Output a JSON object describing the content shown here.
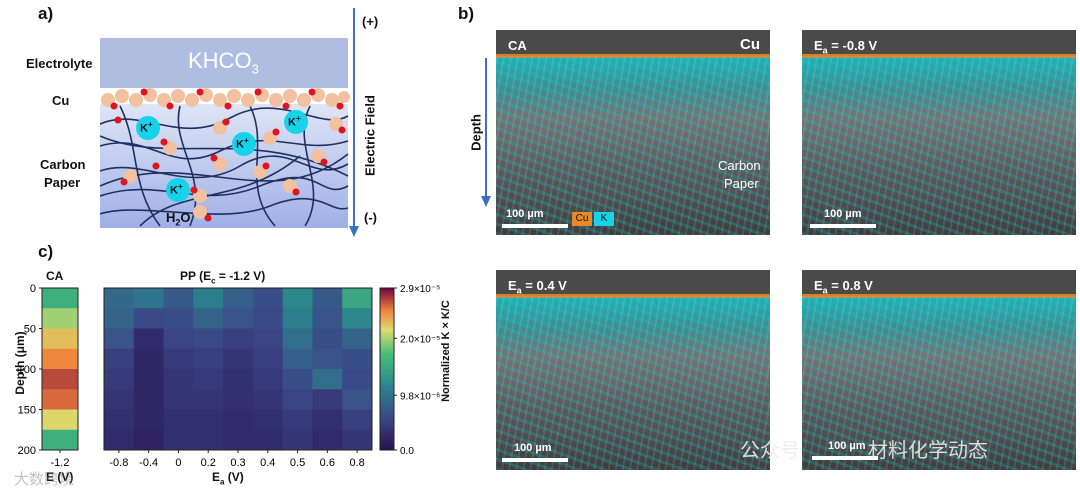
{
  "panel_a": {
    "label": "a)",
    "electrolyte_label": "Electrolyte",
    "cu_label": "Cu",
    "carbon_label_1": "Carbon",
    "carbon_label_2": "Paper",
    "khco3": "KHCO",
    "khco3_sub": "3",
    "kplus": "K",
    "kplus_sup": "+",
    "h2o_h": "H",
    "h2o_sub": "2",
    "h2o_o": "O",
    "plus": "(+)",
    "minus": "(-)",
    "field_label": "Electric Field"
  },
  "panel_b": {
    "label": "b)",
    "depth_label": "Depth",
    "images": [
      {
        "title": "CA",
        "extra": "Cu",
        "scale": "100 µm",
        "note1": "Carbon",
        "note2": "Paper",
        "legend_cu": "Cu",
        "legend_k": "K"
      },
      {
        "title_pre": "E",
        "title_sub": "a",
        "title_post": " = -0.8 V",
        "scale": "100 µm"
      },
      {
        "title_pre": "E",
        "title_sub": "a",
        "title_post": " = 0.4 V",
        "scale": "100 µm"
      },
      {
        "title_pre": "E",
        "title_sub": "a",
        "title_post": " = 0.8 V",
        "scale": "100 µm"
      }
    ]
  },
  "panel_c": {
    "label": "c)",
    "ca_title": "CA",
    "pp_title_pre": "PP (E",
    "pp_title_sub": "c",
    "pp_title_post": " = -1.2 V)",
    "ylabel": "Depth (μm)",
    "xlabel_left": "E (V)",
    "xlabel_pre": "E",
    "xlabel_sub": "a",
    "xlabel_post": " (V)",
    "colorbar_label": "Normalized K × K/C",
    "colorbar_ticks": [
      "2.9×10⁻⁵",
      "2.0×10⁻⁵",
      "9.8×10⁻⁶",
      "0.0"
    ]
  },
  "chart_data": {
    "type": "heatmap",
    "title": "PP (Ec = -1.2 V)",
    "xlabel": "Ea (V)",
    "ylabel": "Depth (μm)",
    "ylim": [
      0,
      200
    ],
    "yticks": [
      "0",
      "50",
      "100",
      "150",
      "200"
    ],
    "ca_x": [
      "-1.2"
    ],
    "categories": [
      "-0.8",
      "-0.4",
      "0",
      "0.2",
      "0.3",
      "0.4",
      "0.5",
      "0.6",
      "0.8"
    ],
    "colorbar_range": [
      0.0,
      2.9e-05
    ],
    "depth_bins": [
      0,
      25,
      50,
      75,
      100,
      125,
      150,
      175
    ],
    "ca_values": [
      1.6e-05,
      2e-05,
      2.3e-05,
      2.5e-05,
      2.7e-05,
      2.6e-05,
      2.2e-05,
      1.6e-05
    ],
    "values": [
      [
        9e-06,
        8.5e-06,
        7e-06,
        5e-06,
        4.5e-06,
        4e-06,
        3.5e-06,
        3e-06
      ],
      [
        1e-05,
        6e-06,
        3e-06,
        2.5e-06,
        2.5e-06,
        2.5e-06,
        2.5e-06,
        2e-06
      ],
      [
        7.5e-06,
        6.5e-06,
        5.5e-06,
        4.5e-06,
        4e-06,
        4e-06,
        3.5e-06,
        3.5e-06
      ],
      [
        1.1e-05,
        8.5e-06,
        6e-06,
        5e-06,
        4.5e-06,
        4e-06,
        3.5e-06,
        3.5e-06
      ],
      [
        8e-06,
        7e-06,
        5e-06,
        4e-06,
        3.5e-06,
        3.5e-06,
        3e-06,
        3e-06
      ],
      [
        6.5e-06,
        6e-06,
        5.5e-06,
        5e-06,
        4.5e-06,
        4e-06,
        3.5e-06,
        3e-06
      ],
      [
        1.2e-05,
        1.1e-05,
        9.5e-06,
        8e-06,
        6.5e-06,
        5.5e-06,
        4.5e-06,
        4e-06
      ],
      [
        7.5e-06,
        7e-06,
        6.5e-06,
        7e-06,
        9.5e-06,
        4.5e-06,
        3.5e-06,
        3e-06
      ],
      [
        1.5e-05,
        1.2e-05,
        8.5e-06,
        6.5e-06,
        6e-06,
        7e-06,
        5e-06,
        4e-06
      ]
    ]
  },
  "watermarks": {
    "left": "大数跨境",
    "right_a": "公众号",
    "right_b": "材料化学动态"
  }
}
